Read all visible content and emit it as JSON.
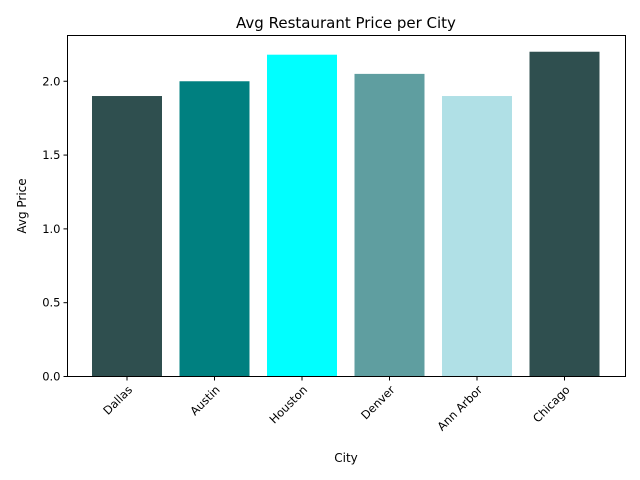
{
  "chart_data": {
    "type": "bar",
    "title": "Avg Restaurant Price per City",
    "xlabel": "City",
    "ylabel": "Avg Price",
    "categories": [
      "Dallas",
      "Austin",
      "Houston",
      "Denver",
      "Ann Arbor",
      "Chicago"
    ],
    "values": [
      1.9,
      2.0,
      2.18,
      2.05,
      1.9,
      2.2
    ],
    "colors": [
      "#2f4f4f",
      "#008080",
      "#00ffff",
      "#5f9ea0",
      "#b0e0e6",
      "#2f4f4f"
    ],
    "ylim": [
      0,
      2.31
    ],
    "yticks": [
      "0.0",
      "0.5",
      "1.0",
      "1.5",
      "2.0"
    ],
    "grid": false,
    "legend": "none"
  }
}
